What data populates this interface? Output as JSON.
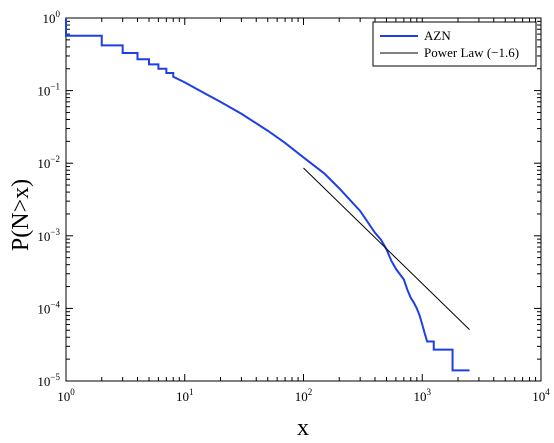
{
  "chart_data": {
    "type": "line",
    "xscale": "log",
    "yscale": "log",
    "xlabel": "x",
    "ylabel": "P(N>x)",
    "xlim": [
      1,
      10000
    ],
    "ylim": [
      1e-05,
      1
    ],
    "x_ticks": [
      {
        "base": "10",
        "exp": "0",
        "value": 1
      },
      {
        "base": "10",
        "exp": "1",
        "value": 10
      },
      {
        "base": "10",
        "exp": "2",
        "value": 100
      },
      {
        "base": "10",
        "exp": "3",
        "value": 1000
      },
      {
        "base": "10",
        "exp": "4",
        "value": 10000
      }
    ],
    "y_ticks": [
      {
        "base": "10",
        "exp": "0",
        "value": 1
      },
      {
        "base": "10",
        "exp": "−1",
        "value": 0.1
      },
      {
        "base": "10",
        "exp": "−2",
        "value": 0.01
      },
      {
        "base": "10",
        "exp": "−3",
        "value": 0.001
      },
      {
        "base": "10",
        "exp": "−4",
        "value": 0.0001
      },
      {
        "base": "10",
        "exp": "−5",
        "value": 1e-05
      }
    ],
    "legend_position": "top-right",
    "series": [
      {
        "name": "AZN",
        "color": "#1f3fe6",
        "style": "step",
        "points": [
          [
            1,
            1.0
          ],
          [
            1,
            0.57
          ],
          [
            2,
            0.57
          ],
          [
            2,
            0.42
          ],
          [
            3,
            0.42
          ],
          [
            3,
            0.33
          ],
          [
            4,
            0.33
          ],
          [
            4,
            0.27
          ],
          [
            5,
            0.27
          ],
          [
            5,
            0.23
          ],
          [
            6,
            0.23
          ],
          [
            6,
            0.2
          ],
          [
            7,
            0.2
          ],
          [
            7,
            0.175
          ],
          [
            8,
            0.175
          ],
          [
            8,
            0.155
          ],
          [
            10,
            0.13
          ],
          [
            15,
            0.09
          ],
          [
            20,
            0.07
          ],
          [
            30,
            0.048
          ],
          [
            50,
            0.028
          ],
          [
            70,
            0.019
          ],
          [
            100,
            0.012
          ],
          [
            150,
            0.0072
          ],
          [
            200,
            0.0045
          ],
          [
            300,
            0.0022
          ],
          [
            400,
            0.0011
          ],
          [
            450,
            0.00088
          ],
          [
            500,
            0.00065
          ],
          [
            550,
            0.00045
          ],
          [
            600,
            0.00035
          ],
          [
            700,
            0.00025
          ],
          [
            750,
            0.00018
          ],
          [
            800,
            0.00014
          ],
          [
            850,
            0.00012
          ],
          [
            900,
            0.0001
          ],
          [
            950,
            8e-05
          ],
          [
            1000,
            6e-05
          ],
          [
            1050,
            4.5e-05
          ],
          [
            1100,
            3.5e-05
          ],
          [
            1100,
            3.5e-05
          ],
          [
            1250,
            3.5e-05
          ],
          [
            1250,
            2.7e-05
          ],
          [
            1800,
            2.7e-05
          ],
          [
            1800,
            1.4e-05
          ],
          [
            2500,
            1.4e-05
          ]
        ]
      },
      {
        "name": "Power Law (−1.6)",
        "color": "#000000",
        "style": "line",
        "points": [
          [
            100,
            0.0086
          ],
          [
            2500,
            5.1e-05
          ]
        ]
      }
    ]
  }
}
